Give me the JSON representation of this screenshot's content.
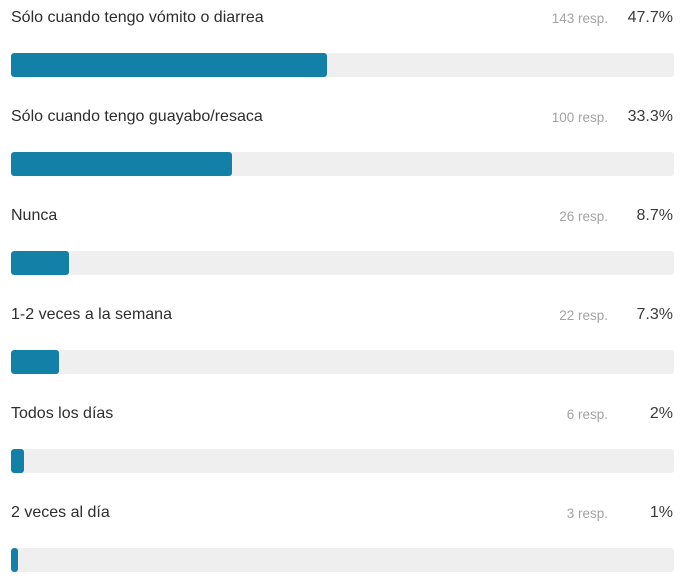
{
  "colors": {
    "bar_fill": "#1380a8",
    "bar_track": "#efefef",
    "label_text": "#2d2d2d",
    "resp_text": "#a3a3a3"
  },
  "chart_data": {
    "type": "bar",
    "orientation": "horizontal",
    "categories": [
      "Sólo cuando tengo vómito o diarrea",
      "Sólo cuando tengo guayabo/resaca",
      "Nunca",
      "1-2 veces a la semana",
      "Todos los días",
      "2 veces al día"
    ],
    "responses": [
      143,
      100,
      26,
      22,
      6,
      3
    ],
    "response_labels": [
      "143 resp.",
      "100 resp.",
      "26 resp.",
      "22 resp.",
      "6 resp.",
      "3 resp."
    ],
    "values": [
      47.7,
      33.3,
      8.7,
      7.3,
      2,
      1
    ],
    "value_labels": [
      "47.7%",
      "33.3%",
      "8.7%",
      "7.3%",
      "2%",
      "1%"
    ],
    "xlim": [
      0,
      100
    ],
    "grid": false,
    "legend": "none"
  }
}
